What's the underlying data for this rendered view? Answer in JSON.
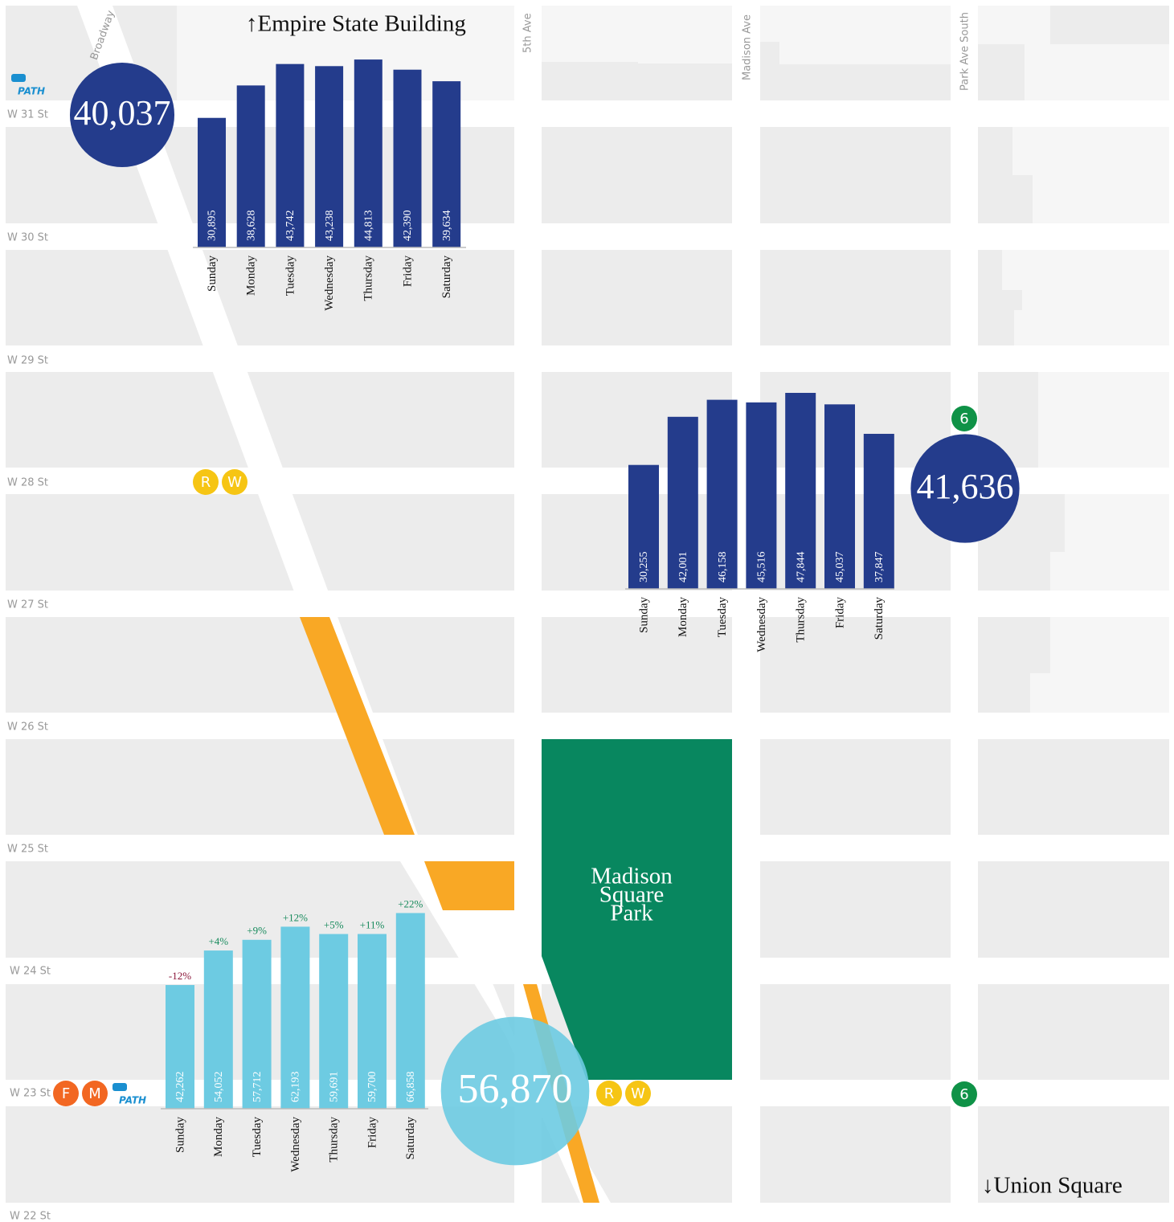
{
  "map": {
    "north": "↑Empire State Building",
    "south": "↓Union Square",
    "park": [
      "Madison",
      "Square",
      "Park"
    ],
    "streets": [
      "W 31 St",
      "W 30 St",
      "W 29 St",
      "W 28 St",
      "W 27 St",
      "W 26 St",
      "W 25 St",
      "W 24 St",
      "W 23 St",
      "W 22 St"
    ],
    "avenues": [
      "Broadway",
      "5th Ave",
      "Madison Ave",
      "Park Ave South"
    ],
    "stations": [
      {
        "lines": [
          "R",
          "W"
        ],
        "color": "#f6c514"
      },
      {
        "lines": [
          "6"
        ],
        "color": "#0f9247"
      },
      {
        "lines": [
          "F",
          "M"
        ],
        "color": "#f26722"
      },
      {
        "lines": [
          "R",
          "W"
        ],
        "color": "#f6c514"
      },
      {
        "lines": [
          "6"
        ],
        "color": "#0f9247"
      }
    ],
    "path_logos": [
      "PATH",
      "PATH"
    ]
  },
  "chart_data": [
    {
      "type": "bar",
      "color": "#243c8c",
      "total": 40037,
      "total_label": "40,037",
      "categories": [
        "Sunday",
        "Monday",
        "Tuesday",
        "Wednesday",
        "Thursday",
        "Friday",
        "Saturday"
      ],
      "values": [
        30895,
        38628,
        43742,
        43238,
        44813,
        42390,
        39634
      ],
      "value_labels": [
        "30,895",
        "38,628",
        "43,742",
        "43,238",
        "44,813",
        "42,390",
        "39,634"
      ],
      "ylim": [
        0,
        50000
      ]
    },
    {
      "type": "bar",
      "color": "#243c8c",
      "total": 41636,
      "total_label": "41,636",
      "categories": [
        "Sunday",
        "Monday",
        "Tuesday",
        "Wednesday",
        "Thursday",
        "Friday",
        "Saturday"
      ],
      "values": [
        30255,
        42001,
        46158,
        45516,
        47844,
        45037,
        37847
      ],
      "value_labels": [
        "30,255",
        "42,001",
        "46,158",
        "45,516",
        "47,844",
        "45,037",
        "37,847"
      ],
      "ylim": [
        0,
        50000
      ]
    },
    {
      "type": "bar",
      "color": "#6dcbe2",
      "total": 56870,
      "total_label": "56,870",
      "categories": [
        "Sunday",
        "Monday",
        "Tuesday",
        "Wednesday",
        "Thursday",
        "Friday",
        "Saturday"
      ],
      "values": [
        42262,
        54052,
        57712,
        62193,
        59691,
        59700,
        66858
      ],
      "value_labels": [
        "42,262",
        "54,052",
        "57,712",
        "62,193",
        "59,691",
        "59,700",
        "66,858"
      ],
      "changes": [
        -12,
        4,
        9,
        12,
        5,
        11,
        22
      ],
      "change_labels": [
        "-12%",
        "+4%",
        "+9%",
        "+12%",
        "+5%",
        "+11%",
        "+22%"
      ],
      "ylim": [
        0,
        70000
      ]
    }
  ]
}
